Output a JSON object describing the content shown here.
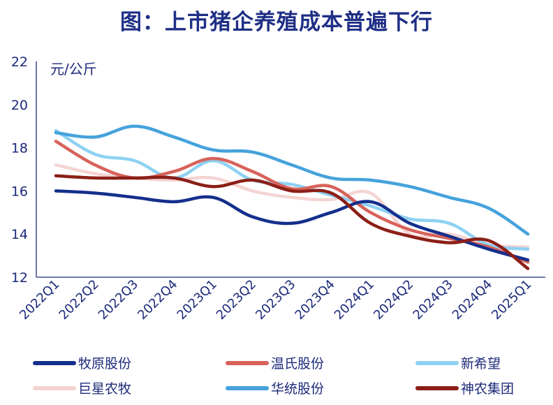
{
  "chart_data": {
    "type": "line",
    "title": "图：上市猪企养殖成本普遍下行",
    "ylabel": "元/公斤",
    "xlabel": "",
    "ylim": [
      12,
      22
    ],
    "yticks": [
      12,
      14,
      16,
      18,
      20,
      22
    ],
    "categories": [
      "2022Q1",
      "2022Q2",
      "2022Q3",
      "2022Q4",
      "2023Q1",
      "2023Q2",
      "2023Q3",
      "2023Q4",
      "2024Q1",
      "2024Q2",
      "2024Q3",
      "2024Q4",
      "2025Q1"
    ],
    "grid": false,
    "legend_position": "bottom",
    "series": [
      {
        "name": "牧原股份",
        "color": "#142f8c",
        "values": [
          16.0,
          15.9,
          15.7,
          15.5,
          15.7,
          14.8,
          14.5,
          15.0,
          15.5,
          14.5,
          13.9,
          13.3,
          12.8
        ]
      },
      {
        "name": "温氏股份",
        "color": "#d7625a",
        "values": [
          18.3,
          17.2,
          16.6,
          16.9,
          17.5,
          16.9,
          16.1,
          16.2,
          15.0,
          14.2,
          13.8,
          13.4,
          12.7
        ]
      },
      {
        "name": "新希望",
        "color": "#8ed1f2",
        "values": [
          18.8,
          17.7,
          17.4,
          16.6,
          17.4,
          16.5,
          16.3,
          15.8,
          15.3,
          14.7,
          14.5,
          13.5,
          13.3
        ]
      },
      {
        "name": "巨星农牧",
        "color": "#f4d4d2",
        "values": [
          17.2,
          16.8,
          16.6,
          16.5,
          16.6,
          16.0,
          15.7,
          15.6,
          15.9,
          14.0,
          14.0,
          13.5,
          13.4
        ]
      },
      {
        "name": "华统股份",
        "color": "#45a2dc",
        "values": [
          18.7,
          18.5,
          19.0,
          18.5,
          17.9,
          17.8,
          17.2,
          16.6,
          16.5,
          16.2,
          15.7,
          15.2,
          14.0
        ]
      },
      {
        "name": "神农集团",
        "color": "#8b1f17",
        "values": [
          16.7,
          16.6,
          16.6,
          16.6,
          16.2,
          16.5,
          16.0,
          15.9,
          14.5,
          13.9,
          13.6,
          13.7,
          12.4
        ]
      }
    ]
  }
}
